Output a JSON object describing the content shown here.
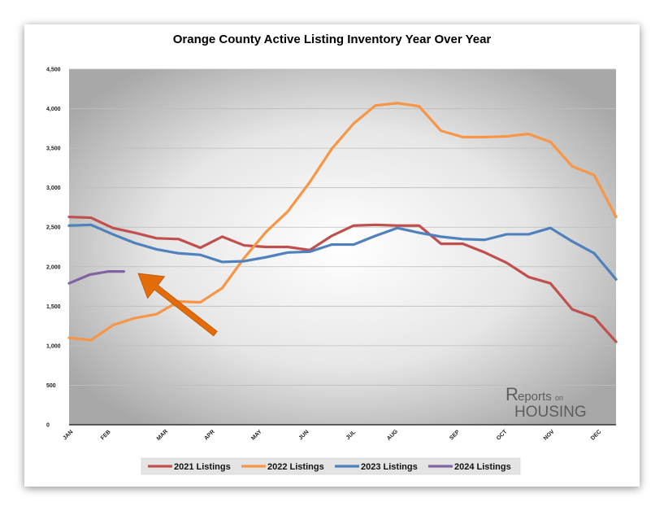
{
  "chart_data": {
    "type": "line",
    "title": "Orange County Active Listing Inventory Year Over Year",
    "xlabel": "",
    "ylabel": "",
    "ylim": [
      0,
      4500
    ],
    "yticks": [
      0,
      500,
      1000,
      1500,
      2000,
      2500,
      3000,
      3500,
      4000,
      4500
    ],
    "ytick_labels": [
      "0",
      "500",
      "1,000",
      "1,500",
      "2,000",
      "2,500",
      "3,000",
      "3,500",
      "4,000",
      "4,500"
    ],
    "x_index_max": 29,
    "month_labels": [
      {
        "label": "JAN",
        "i": 0
      },
      {
        "label": "FEB",
        "i": 2
      },
      {
        "label": "MAR",
        "i": 5
      },
      {
        "label": "APR",
        "i": 7.5
      },
      {
        "label": "MAY",
        "i": 10
      },
      {
        "label": "JUN",
        "i": 12.5
      },
      {
        "label": "JUL",
        "i": 15
      },
      {
        "label": "AUG",
        "i": 17.2
      },
      {
        "label": "SEP",
        "i": 20.5
      },
      {
        "label": "OCT",
        "i": 23
      },
      {
        "label": "NOV",
        "i": 25.5
      },
      {
        "label": "DEC",
        "i": 28
      }
    ],
    "grid": true,
    "legend_position": "bottom",
    "series": [
      {
        "name": "2021 Listings",
        "color": "#c0504d",
        "values": [
          2630,
          2620,
          2490,
          2430,
          2360,
          2350,
          2240,
          2380,
          2270,
          2250,
          2250,
          2210,
          2390,
          2520,
          2530,
          2520,
          2520,
          2290,
          2290,
          2180,
          2050,
          1870,
          1790,
          1460,
          1360,
          1050
        ]
      },
      {
        "name": "2022 Listings",
        "color": "#f79646",
        "values": [
          1100,
          1070,
          1260,
          1350,
          1400,
          1560,
          1550,
          1730,
          2110,
          2440,
          2700,
          3070,
          3490,
          3810,
          4040,
          4070,
          4030,
          3720,
          3640,
          3640,
          3650,
          3680,
          3580,
          3270,
          3160,
          2630
        ]
      },
      {
        "name": "2023 Listings",
        "color": "#4f81bd",
        "values": [
          2520,
          2530,
          2410,
          2300,
          2220,
          2170,
          2150,
          2060,
          2070,
          2120,
          2180,
          2190,
          2280,
          2280,
          2390,
          2490,
          2430,
          2380,
          2350,
          2340,
          2410,
          2410,
          2490,
          2320,
          2170,
          1840
        ]
      },
      {
        "name": "2024 Listings",
        "color": "#8064a2",
        "values": [
          1790,
          1900,
          1940,
          1940
        ]
      }
    ],
    "x_positions_2021_2022_2023": [
      0,
      1,
      2,
      3,
      4,
      5,
      6,
      7,
      8,
      9,
      10,
      11,
      12,
      13,
      14,
      15,
      16,
      17,
      18,
      19,
      20,
      21,
      22,
      23,
      24,
      25
    ],
    "annotation": {
      "type": "arrow",
      "color": "#e36c09"
    }
  },
  "legend": {
    "items": [
      {
        "label": "2021 Listings",
        "color": "#c0504d"
      },
      {
        "label": "2022 Listings",
        "color": "#f79646"
      },
      {
        "label": "2023 Listings",
        "color": "#4f81bd"
      },
      {
        "label": "2024 Listings",
        "color": "#8064a2"
      }
    ]
  },
  "logo": {
    "part1": "eports",
    "part2": "on",
    "part3": "HOUSING"
  },
  "colors": {
    "plot_bg_center": "#ffffff",
    "plot_bg_edge": "#a6a6a6",
    "arrow": "#e36c09"
  }
}
